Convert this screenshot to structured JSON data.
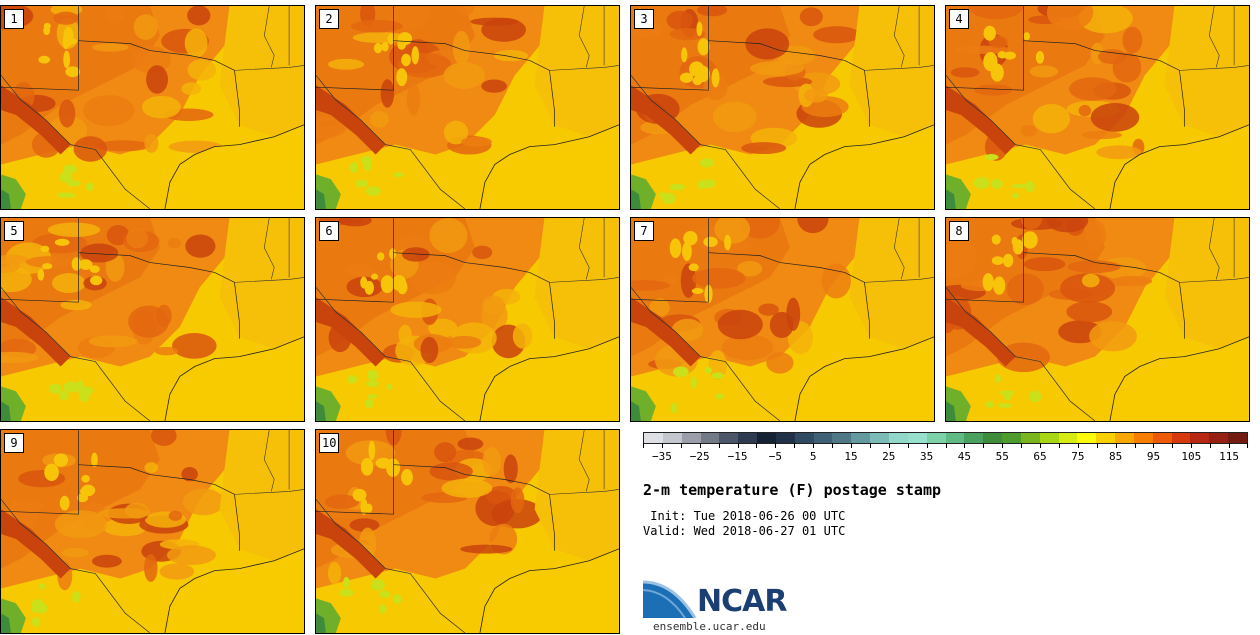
{
  "stamps": [
    "1",
    "2",
    "3",
    "4",
    "5",
    "6",
    "7",
    "8",
    "9",
    "10"
  ],
  "colorbar": {
    "colors": [
      "#dfe0e5",
      "#c4c6cd",
      "#9c9fa9",
      "#727987",
      "#4d5668",
      "#2d3a4f",
      "#152234",
      "#1f3047",
      "#2f4a61",
      "#3f6175",
      "#4f7886",
      "#649a9f",
      "#7bbab5",
      "#92d8c9",
      "#97e0cc",
      "#7cd1a8",
      "#5fbb83",
      "#4aa05e",
      "#3e8b3c",
      "#4e9a2c",
      "#7ab51d",
      "#a8d514",
      "#d6eb12",
      "#fbfb0b",
      "#fad000",
      "#f8a800",
      "#f77e00",
      "#ee5b06",
      "#d7380d",
      "#b82712",
      "#962014",
      "#731b10"
    ],
    "labels": [
      "−35",
      "−25",
      "−15",
      "−5",
      "5",
      "15",
      "25",
      "35",
      "45",
      "55",
      "65",
      "75",
      "85",
      "95",
      "105",
      "115"
    ]
  },
  "title": "2-m temperature (F) postage stamp",
  "init": " Init: Tue 2018-06-26 00 UTC",
  "valid": "Valid: Wed 2018-06-27 01 UTC",
  "logo": {
    "text": "NCAR",
    "url": "ensemble.ucar.edu"
  }
}
